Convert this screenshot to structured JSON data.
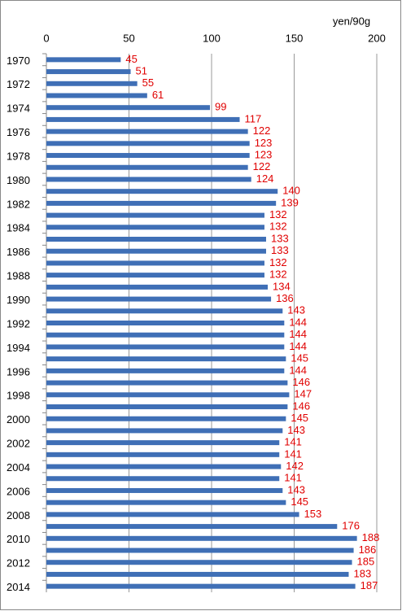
{
  "chart_data": {
    "type": "bar",
    "orientation": "horizontal",
    "unit_label": "yen/90g",
    "categories": [
      "1970",
      null,
      "1972",
      null,
      "1974",
      null,
      "1976",
      null,
      "1978",
      null,
      "1980",
      null,
      "1982",
      null,
      "1984",
      null,
      "1986",
      null,
      "1988",
      null,
      "1990",
      null,
      "1992",
      null,
      "1994",
      null,
      "1996",
      null,
      "1998",
      null,
      "2000",
      null,
      "2002",
      null,
      "2004",
      null,
      "2006",
      null,
      "2008",
      null,
      "2010",
      null,
      "2012",
      null,
      "2014"
    ],
    "values": [
      45,
      51,
      55,
      61,
      99,
      117,
      122,
      123,
      123,
      122,
      124,
      140,
      139,
      132,
      132,
      133,
      133,
      132,
      132,
      134,
      136,
      143,
      144,
      144,
      144,
      145,
      144,
      146,
      147,
      146,
      145,
      143,
      141,
      141,
      142,
      141,
      143,
      145,
      153,
      176,
      188,
      186,
      185,
      183,
      187
    ],
    "color": "#3f6fb6",
    "label_color": "#e00000",
    "xlim": [
      0,
      200
    ],
    "xticks": [
      0,
      50,
      100,
      150,
      200
    ],
    "grid": true
  }
}
